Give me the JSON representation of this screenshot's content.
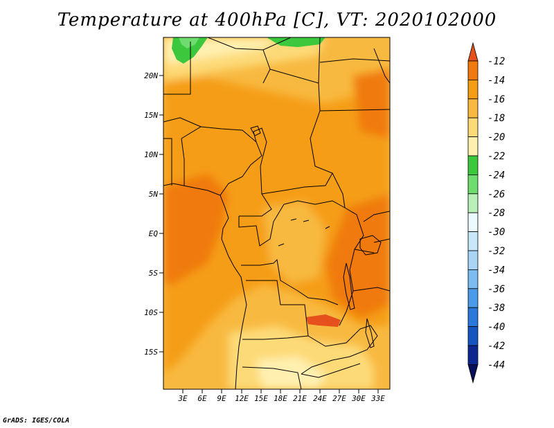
{
  "title": "Temperature at 400hPa [C], VT: 2020102000",
  "credit": "GrADS: IGES/COLA",
  "map": {
    "lat_labels": [
      "20N",
      "15N",
      "10N",
      "5N",
      "EQ",
      "5S",
      "10S",
      "15S"
    ],
    "lon_labels": [
      "3E",
      "6E",
      "9E",
      "12E",
      "15E",
      "18E",
      "21E",
      "24E",
      "27E",
      "30E",
      "33E"
    ]
  },
  "colorbar": {
    "levels": [
      "-12",
      "-14",
      "-16",
      "-18",
      "-20",
      "-22",
      "-24",
      "-26",
      "-28",
      "-30",
      "-32",
      "-34",
      "-36",
      "-38",
      "-40",
      "-42",
      "-44"
    ],
    "colors": [
      "#e5501c",
      "#f07a10",
      "#f59d14",
      "#f8b941",
      "#fdda78",
      "#fff0b0",
      "#3cc83c",
      "#6edc6e",
      "#b8f0b8",
      "#eafaff",
      "#c8e8fa",
      "#a8d4f5",
      "#7cbcf0",
      "#4b9bea",
      "#2a78dc",
      "#1455c0",
      "#0c2890",
      "#08105a"
    ]
  },
  "palette": {
    "warm": "#f59d14",
    "warmer": "#f07a10",
    "mid": "#f8b941",
    "cool": "#fdda78",
    "pale": "#fff0b0",
    "green": "#3cc83c",
    "hot": "#e5501c"
  }
}
